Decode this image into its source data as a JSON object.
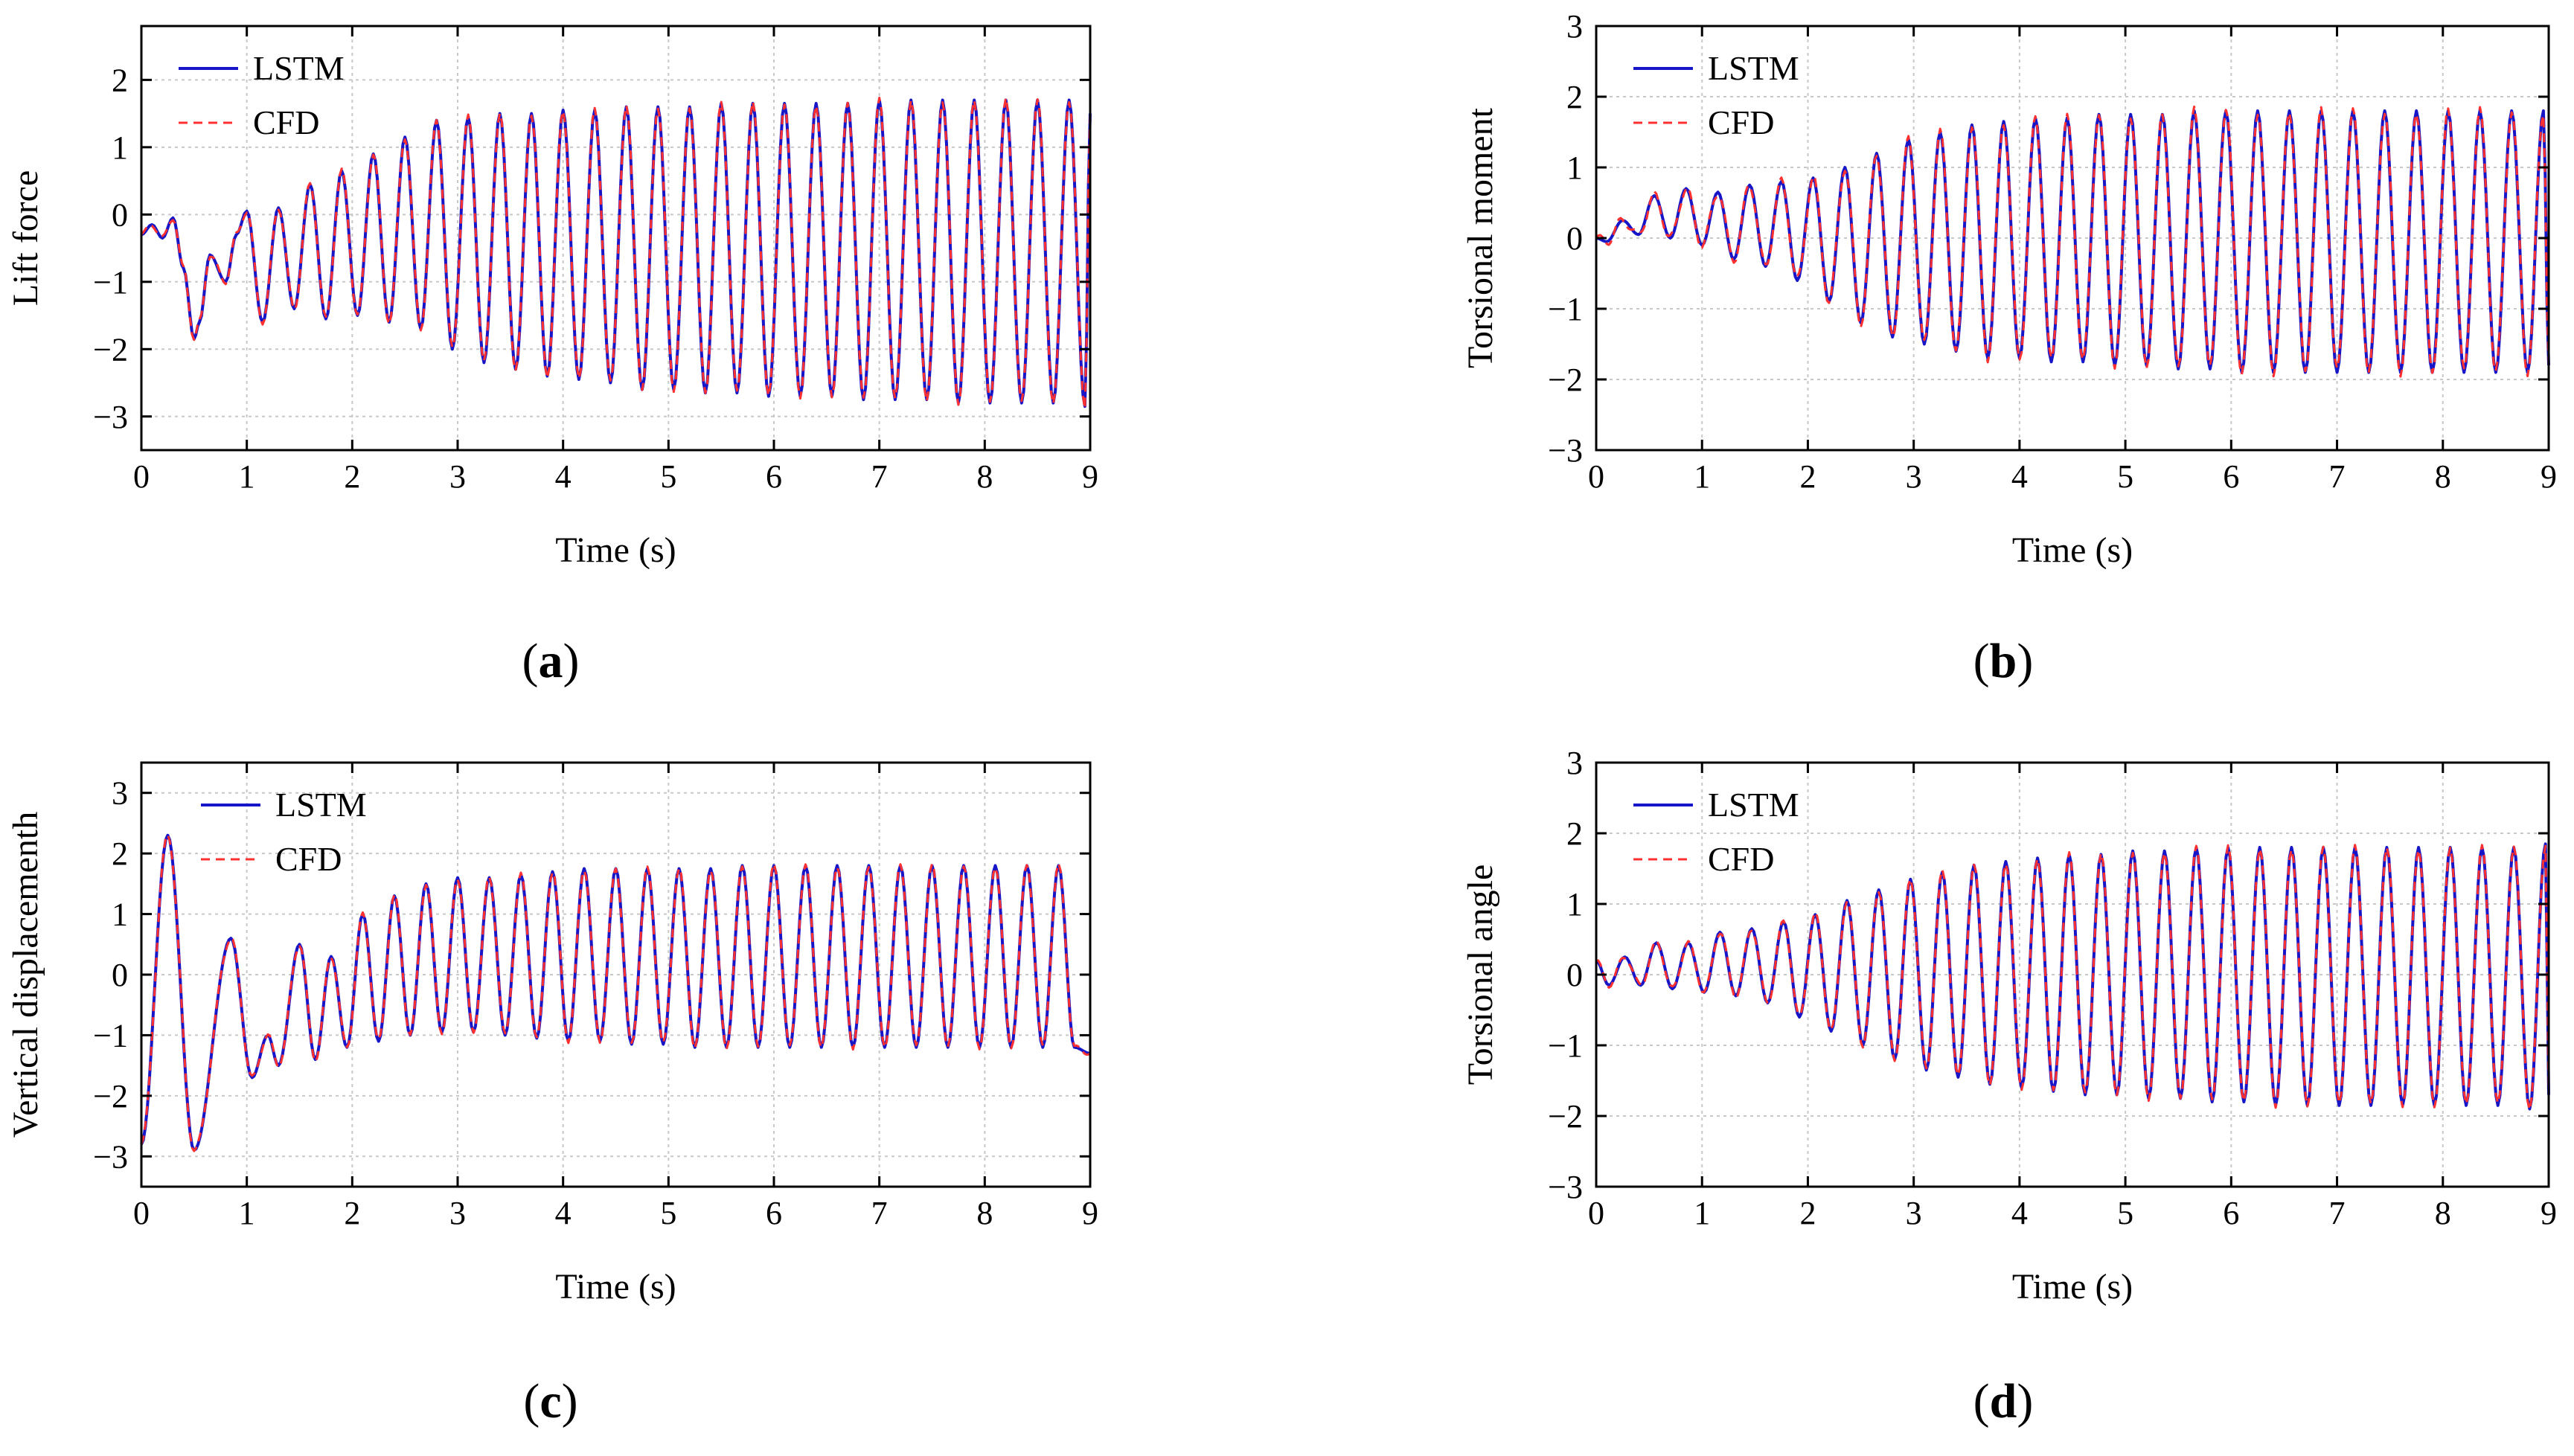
{
  "legend": {
    "lstm": "LSTM",
    "cfd": "CFD"
  },
  "colors": {
    "lstm": "#1616c8",
    "cfd": "#ff3030",
    "grid": "#c8c8c8",
    "axis": "#000000"
  },
  "chart_data": [
    {
      "type": "line",
      "panel": "a",
      "caption": "(a)",
      "ylabel": "Lift force",
      "xlabel": "Time (s)",
      "xlim": [
        0,
        9
      ],
      "ylim": [
        -3.5,
        2.8
      ],
      "xticks": [
        0,
        1,
        2,
        3,
        4,
        5,
        6,
        7,
        8,
        9
      ],
      "yticks": [
        -3,
        -2,
        -1,
        0,
        1,
        2
      ],
      "legend_position": "top-left",
      "series": [
        {
          "name": "LSTM",
          "style": "solid"
        },
        {
          "name": "CFD",
          "style": "dashed"
        }
      ],
      "x": [
        0,
        0.1,
        0.2,
        0.3,
        0.4,
        0.5,
        0.55,
        0.65,
        0.8,
        0.9,
        1.0,
        1.15,
        1.3,
        1.45,
        1.6,
        1.75,
        1.9,
        2.05,
        2.2,
        2.35,
        2.5,
        2.65,
        2.8,
        2.95,
        3.1,
        3.25,
        3.4,
        3.55,
        3.7,
        3.85,
        4.0,
        4.15,
        4.3,
        4.45,
        4.6,
        4.75,
        4.9,
        5.05,
        5.2,
        5.35,
        5.5,
        5.65,
        5.8,
        5.95,
        6.1,
        6.25,
        6.4,
        6.55,
        6.7,
        6.85,
        7.0,
        7.15,
        7.3,
        7.45,
        7.6,
        7.75,
        7.9,
        8.05,
        8.2,
        8.35,
        8.5,
        8.65,
        8.8,
        8.95,
        9.0
      ],
      "values": [
        -0.3,
        -0.15,
        -0.35,
        -0.05,
        -0.8,
        -1.85,
        -1.6,
        -0.6,
        -1.0,
        -0.3,
        0.05,
        -1.6,
        0.1,
        -1.4,
        0.45,
        -1.55,
        0.65,
        -1.5,
        0.9,
        -1.6,
        1.15,
        -1.7,
        1.4,
        -2.0,
        1.45,
        -2.2,
        1.5,
        -2.3,
        1.5,
        -2.4,
        1.55,
        -2.45,
        1.55,
        -2.5,
        1.6,
        -2.6,
        1.6,
        -2.6,
        1.6,
        -2.65,
        1.65,
        -2.65,
        1.65,
        -2.7,
        1.65,
        -2.7,
        1.65,
        -2.7,
        1.65,
        -2.75,
        1.7,
        -2.75,
        1.7,
        -2.75,
        1.7,
        -2.8,
        1.7,
        -2.8,
        1.7,
        -2.8,
        1.7,
        -2.8,
        1.7,
        -2.85,
        1.5
      ]
    },
    {
      "type": "line",
      "panel": "b",
      "caption": "(b)",
      "ylabel": "Torsional moment",
      "xlabel": "Time (s)",
      "xlim": [
        0,
        9
      ],
      "ylim": [
        -3,
        3
      ],
      "xticks": [
        0,
        1,
        2,
        3,
        4,
        5,
        6,
        7,
        8,
        9
      ],
      "yticks": [
        -3,
        -2,
        -1,
        0,
        1,
        2,
        3
      ],
      "legend_position": "top-left",
      "series": [
        {
          "name": "LSTM",
          "style": "solid"
        },
        {
          "name": "CFD",
          "style": "dashed"
        }
      ],
      "x": [
        0,
        0.1,
        0.25,
        0.4,
        0.55,
        0.7,
        0.85,
        1.0,
        1.15,
        1.3,
        1.45,
        1.6,
        1.75,
        1.9,
        2.05,
        2.2,
        2.35,
        2.5,
        2.65,
        2.8,
        2.95,
        3.1,
        3.25,
        3.4,
        3.55,
        3.7,
        3.85,
        4.0,
        4.15,
        4.3,
        4.45,
        4.6,
        4.75,
        4.9,
        5.05,
        5.2,
        5.35,
        5.5,
        5.65,
        5.8,
        5.95,
        6.1,
        6.25,
        6.4,
        6.55,
        6.7,
        6.85,
        7.0,
        7.15,
        7.3,
        7.45,
        7.6,
        7.75,
        7.9,
        8.05,
        8.2,
        8.35,
        8.5,
        8.65,
        8.8,
        8.95,
        9.0
      ],
      "values": [
        0.0,
        -0.05,
        0.25,
        0.05,
        0.6,
        0.0,
        0.7,
        -0.1,
        0.65,
        -0.3,
        0.75,
        -0.4,
        0.8,
        -0.6,
        0.85,
        -0.9,
        1.0,
        -1.2,
        1.2,
        -1.4,
        1.4,
        -1.5,
        1.5,
        -1.6,
        1.6,
        -1.7,
        1.65,
        -1.7,
        1.7,
        -1.75,
        1.7,
        -1.75,
        1.75,
        -1.8,
        1.75,
        -1.8,
        1.75,
        -1.85,
        1.8,
        -1.85,
        1.8,
        -1.9,
        1.8,
        -1.9,
        1.8,
        -1.9,
        1.8,
        -1.9,
        1.8,
        -1.9,
        1.8,
        -1.9,
        1.8,
        -1.9,
        1.8,
        -1.9,
        1.8,
        -1.9,
        1.8,
        -1.9,
        1.8,
        -1.8
      ]
    },
    {
      "type": "line",
      "panel": "c",
      "caption": "(c)",
      "ylabel": "Vertical displacementh",
      "xlabel": "Time (s)",
      "xlim": [
        0,
        9
      ],
      "ylim": [
        -3.5,
        3.5
      ],
      "xticks": [
        0,
        1,
        2,
        3,
        4,
        5,
        6,
        7,
        8,
        9
      ],
      "yticks": [
        -3,
        -2,
        -1,
        0,
        1,
        2,
        3
      ],
      "legend_position": "top-center",
      "series": [
        {
          "name": "LSTM",
          "style": "solid"
        },
        {
          "name": "CFD",
          "style": "dashed"
        }
      ],
      "x": [
        0,
        0.25,
        0.5,
        0.85,
        1.05,
        1.2,
        1.3,
        1.5,
        1.65,
        1.8,
        1.95,
        2.1,
        2.25,
        2.4,
        2.55,
        2.7,
        2.85,
        3.0,
        3.15,
        3.3,
        3.45,
        3.6,
        3.75,
        3.9,
        4.05,
        4.2,
        4.35,
        4.5,
        4.65,
        4.8,
        4.95,
        5.1,
        5.25,
        5.4,
        5.55,
        5.7,
        5.85,
        6.0,
        6.15,
        6.3,
        6.45,
        6.6,
        6.75,
        6.9,
        7.05,
        7.2,
        7.35,
        7.5,
        7.65,
        7.8,
        7.95,
        8.1,
        8.25,
        8.4,
        8.55,
        8.7,
        8.85,
        9.0
      ],
      "values": [
        -2.8,
        2.3,
        -2.9,
        0.6,
        -1.7,
        -1.0,
        -1.5,
        0.5,
        -1.4,
        0.3,
        -1.2,
        1.0,
        -1.1,
        1.3,
        -1.0,
        1.5,
        -0.95,
        1.6,
        -0.95,
        1.6,
        -1.0,
        1.65,
        -1.05,
        1.7,
        -1.1,
        1.75,
        -1.1,
        1.75,
        -1.15,
        1.75,
        -1.15,
        1.75,
        -1.2,
        1.75,
        -1.2,
        1.8,
        -1.2,
        1.8,
        -1.2,
        1.8,
        -1.2,
        1.8,
        -1.2,
        1.8,
        -1.2,
        1.8,
        -1.2,
        1.8,
        -1.2,
        1.8,
        -1.2,
        1.8,
        -1.2,
        1.8,
        -1.2,
        1.8,
        -1.2,
        -1.3
      ]
    },
    {
      "type": "line",
      "panel": "d",
      "caption": "(d)",
      "ylabel": "Torsional angle",
      "xlabel": "Time (s)",
      "xlim": [
        0,
        9
      ],
      "ylim": [
        -3,
        3
      ],
      "xticks": [
        0,
        1,
        2,
        3,
        4,
        5,
        6,
        7,
        8,
        9
      ],
      "yticks": [
        -3,
        -2,
        -1,
        0,
        1,
        2,
        3
      ],
      "legend_position": "top-left",
      "series": [
        {
          "name": "LSTM",
          "style": "solid"
        },
        {
          "name": "CFD",
          "style": "dashed"
        }
      ],
      "x": [
        0,
        0.12,
        0.27,
        0.42,
        0.57,
        0.72,
        0.87,
        1.02,
        1.17,
        1.32,
        1.47,
        1.62,
        1.77,
        1.92,
        2.07,
        2.22,
        2.37,
        2.52,
        2.67,
        2.82,
        2.97,
        3.12,
        3.27,
        3.42,
        3.57,
        3.72,
        3.87,
        4.02,
        4.17,
        4.32,
        4.47,
        4.62,
        4.77,
        4.92,
        5.07,
        5.22,
        5.37,
        5.52,
        5.67,
        5.82,
        5.97,
        6.12,
        6.27,
        6.42,
        6.57,
        6.72,
        6.87,
        7.02,
        7.17,
        7.32,
        7.47,
        7.62,
        7.77,
        7.92,
        8.07,
        8.22,
        8.37,
        8.52,
        8.67,
        8.82,
        8.97,
        9.0
      ],
      "values": [
        0.2,
        -0.15,
        0.25,
        -0.15,
        0.45,
        -0.2,
        0.45,
        -0.25,
        0.6,
        -0.3,
        0.65,
        -0.4,
        0.75,
        -0.6,
        0.85,
        -0.8,
        1.05,
        -1.0,
        1.2,
        -1.2,
        1.35,
        -1.35,
        1.45,
        -1.45,
        1.55,
        -1.55,
        1.6,
        -1.6,
        1.65,
        -1.65,
        1.7,
        -1.7,
        1.7,
        -1.7,
        1.75,
        -1.75,
        1.75,
        -1.75,
        1.8,
        -1.8,
        1.8,
        -1.8,
        1.8,
        -1.85,
        1.8,
        -1.85,
        1.8,
        -1.85,
        1.8,
        -1.85,
        1.8,
        -1.85,
        1.8,
        -1.85,
        1.8,
        -1.85,
        1.8,
        -1.85,
        1.8,
        -1.9,
        1.85,
        -1.7
      ]
    }
  ]
}
